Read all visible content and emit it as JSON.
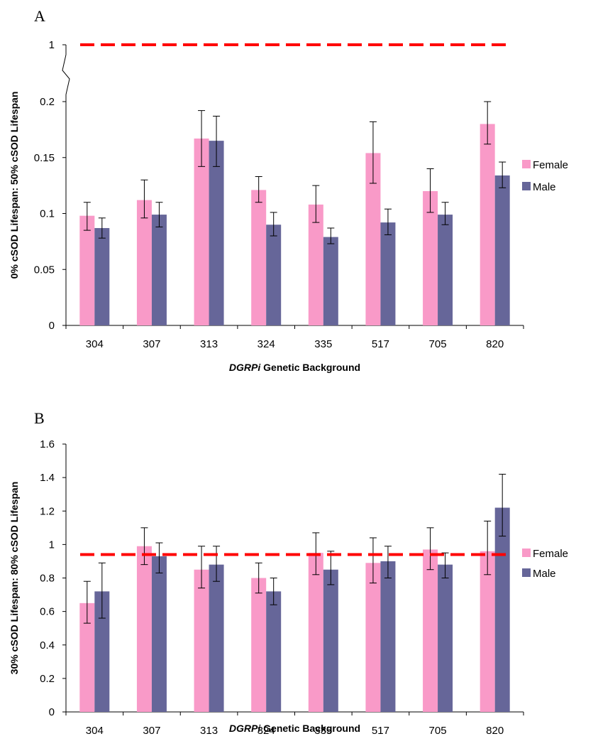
{
  "colors": {
    "female": "#f99ac8",
    "male": "#666699",
    "reference": "#ff0000",
    "axis": "#000000"
  },
  "legend": {
    "female_label": "Female",
    "male_label": "Male",
    "placement": "right"
  },
  "chart_data": [
    {
      "type": "bar",
      "panel_label": "A",
      "categories": [
        "304",
        "307",
        "313",
        "324",
        "335",
        "517",
        "705",
        "820"
      ],
      "xlabel_italic": "DGRPi",
      "xlabel_rest": " Genetic Background",
      "ylabel": "0% cSOD Lifespan: 50% cSOD Lifespan",
      "ylim": [
        0,
        0.2
      ],
      "y_ticks": [
        "0",
        "0.05",
        "0.1",
        "0.15",
        "0.2"
      ],
      "y_break": {
        "label": "1",
        "value": 1
      },
      "reference_line": 1,
      "series": [
        {
          "name": "Female",
          "values": [
            0.098,
            0.112,
            0.167,
            0.121,
            0.108,
            0.154,
            0.12,
            0.18
          ],
          "error": [
            [
              0.085,
              0.11
            ],
            [
              0.096,
              0.13
            ],
            [
              0.142,
              0.192
            ],
            [
              0.11,
              0.133
            ],
            [
              0.092,
              0.125
            ],
            [
              0.127,
              0.182
            ],
            [
              0.101,
              0.14
            ],
            [
              0.162,
              0.2
            ]
          ]
        },
        {
          "name": "Male",
          "values": [
            0.087,
            0.099,
            0.165,
            0.09,
            0.079,
            0.092,
            0.099,
            0.134
          ],
          "error": [
            [
              0.078,
              0.096
            ],
            [
              0.088,
              0.11
            ],
            [
              0.142,
              0.187
            ],
            [
              0.08,
              0.101
            ],
            [
              0.073,
              0.087
            ],
            [
              0.081,
              0.104
            ],
            [
              0.09,
              0.11
            ],
            [
              0.123,
              0.146
            ]
          ]
        }
      ]
    },
    {
      "type": "bar",
      "panel_label": "B",
      "categories": [
        "304",
        "307",
        "313",
        "324",
        "335",
        "517",
        "705",
        "820"
      ],
      "xlabel_italic": "DGRPi",
      "xlabel_rest": " Genetic Background",
      "ylabel": "30% cSOD Lifespan: 80% cSOD Lifespan",
      "ylim": [
        0,
        1.6
      ],
      "y_ticks": [
        "0",
        "0.2",
        "0.4",
        "0.6",
        "0.8",
        "1",
        "1.2",
        "1.4",
        "1.6"
      ],
      "reference_line": 0.94,
      "series": [
        {
          "name": "Female",
          "values": [
            0.65,
            0.99,
            0.85,
            0.8,
            0.95,
            0.89,
            0.97,
            0.96
          ],
          "error": [
            [
              0.53,
              0.78
            ],
            [
              0.88,
              1.1
            ],
            [
              0.74,
              0.99
            ],
            [
              0.71,
              0.89
            ],
            [
              0.82,
              1.07
            ],
            [
              0.77,
              1.04
            ],
            [
              0.85,
              1.1
            ],
            [
              0.82,
              1.14
            ]
          ]
        },
        {
          "name": "Male",
          "values": [
            0.72,
            0.93,
            0.88,
            0.72,
            0.85,
            0.9,
            0.88,
            1.22
          ],
          "error": [
            [
              0.56,
              0.89
            ],
            [
              0.83,
              1.01
            ],
            [
              0.78,
              0.99
            ],
            [
              0.64,
              0.8
            ],
            [
              0.76,
              0.96
            ],
            [
              0.8,
              0.99
            ],
            [
              0.8,
              0.95
            ],
            [
              1.05,
              1.42
            ]
          ]
        }
      ]
    }
  ]
}
